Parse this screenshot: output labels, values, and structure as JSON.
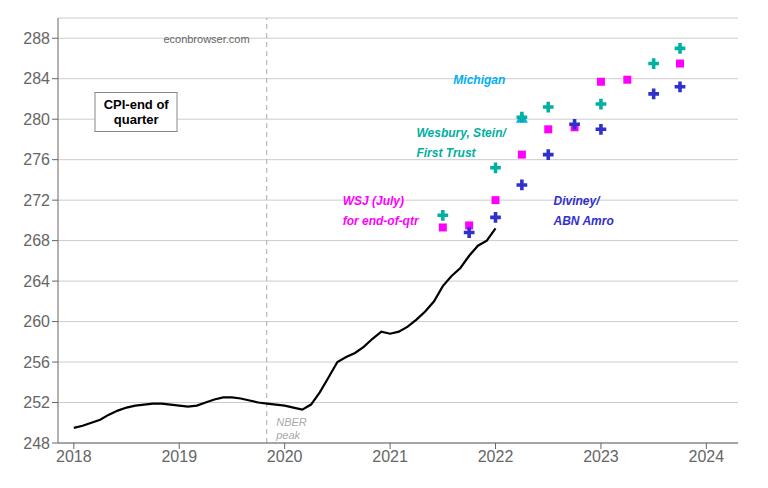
{
  "chart_data": {
    "type": "line",
    "xlim": [
      2017.85,
      2024.3
    ],
    "xticks": [
      2018,
      2019,
      2020,
      2021,
      2022,
      2023,
      2024
    ],
    "ylim": [
      248,
      290
    ],
    "yticks": [
      248,
      252,
      256,
      260,
      264,
      268,
      272,
      276,
      280,
      284,
      288
    ],
    "grid": true,
    "series": [
      {
        "type": "line",
        "color": "#000000",
        "x": [
          2018.0,
          2018.083,
          2018.167,
          2018.25,
          2018.333,
          2018.417,
          2018.5,
          2018.583,
          2018.667,
          2018.75,
          2018.833,
          2018.917,
          2019.0,
          2019.083,
          2019.167,
          2019.25,
          2019.333,
          2019.417,
          2019.5,
          2019.583,
          2019.667,
          2019.75,
          2019.833,
          2019.917,
          2020.0,
          2020.083,
          2020.167,
          2020.25,
          2020.333,
          2020.417,
          2020.5,
          2020.583,
          2020.667,
          2020.75,
          2020.833,
          2020.917,
          2021.0,
          2021.083,
          2021.167,
          2021.25,
          2021.333,
          2021.417,
          2021.5,
          2021.583,
          2021.667,
          2021.75,
          2021.833,
          2021.917,
          2022.0
        ],
        "values": [
          249.5,
          249.7,
          250.0,
          250.3,
          250.8,
          251.2,
          251.5,
          251.7,
          251.8,
          251.9,
          251.9,
          251.8,
          251.7,
          251.6,
          251.7,
          252.0,
          252.3,
          252.5,
          252.5,
          252.4,
          252.2,
          252.0,
          251.9,
          251.8,
          251.7,
          251.5,
          251.3,
          251.8,
          253.0,
          254.5,
          256.0,
          256.5,
          256.9,
          257.5,
          258.3,
          259.0,
          258.8,
          259.0,
          259.5,
          260.2,
          261.0,
          262.0,
          263.5,
          264.5,
          265.3,
          266.5,
          267.5,
          268.0,
          269.2
        ]
      },
      {
        "type": "scatter",
        "marker": "square",
        "color": "#ff00ff",
        "x": [
          2021.5,
          2021.75,
          2022.0,
          2022.25,
          2022.5,
          2022.75,
          2023.0,
          2023.25,
          2023.75
        ],
        "values": [
          269.3,
          269.5,
          272.0,
          276.5,
          279.0,
          279.2,
          283.7,
          283.9,
          285.5
        ]
      },
      {
        "type": "scatter",
        "marker": "triangle",
        "color": "#00b0f0",
        "x": [
          2022.25
        ],
        "values": [
          280.0
        ]
      },
      {
        "type": "scatter",
        "marker": "cross",
        "color": "#00b0a0",
        "x": [
          2021.5,
          2022.0,
          2022.25,
          2022.5,
          2023.0,
          2023.5,
          2023.75
        ],
        "values": [
          270.5,
          275.2,
          280.2,
          281.2,
          281.5,
          285.5,
          287.0
        ]
      },
      {
        "type": "scatter",
        "marker": "cross",
        "color": "#3030cc",
        "x": [
          2021.75,
          2022.0,
          2022.25,
          2022.5,
          2022.75,
          2023.0,
          2023.5,
          2023.75
        ],
        "values": [
          268.8,
          270.3,
          273.5,
          276.5,
          279.5,
          279.0,
          282.5,
          283.2
        ]
      }
    ],
    "reference_lines": [
      {
        "x": 2019.83,
        "color": "#aaaaaa",
        "line_style": "dashed"
      }
    ],
    "annotations": [
      {
        "text": "NBER\npeak",
        "x": 2019.92,
        "y": 250.5,
        "color": "#aaaaaa"
      },
      {
        "text": "WSJ (July)",
        "x": 2020.55,
        "y": 271.5,
        "color": "#ff00ff"
      },
      {
        "text": "for end-of-qtr",
        "x": 2020.55,
        "y": 269.5,
        "color": "#ff00ff"
      },
      {
        "text": "Michigan",
        "x": 2021.6,
        "y": 283.5,
        "color": "#00b0f0"
      },
      {
        "text": "Wesbury, Stein/",
        "x": 2021.25,
        "y": 278.2,
        "color": "#00b0a0"
      },
      {
        "text": "First Trust",
        "x": 2021.25,
        "y": 276.3,
        "color": "#00b0a0"
      },
      {
        "text": "Diviney/",
        "x": 2022.55,
        "y": 271.5,
        "color": "#3030cc"
      },
      {
        "text": "ABN Amro",
        "x": 2022.55,
        "y": 269.5,
        "color": "#3030cc"
      },
      {
        "text": "econbrowser.com",
        "color": "#666666"
      },
      {
        "text": "CPI-end of\nquarter",
        "box": true
      }
    ]
  }
}
